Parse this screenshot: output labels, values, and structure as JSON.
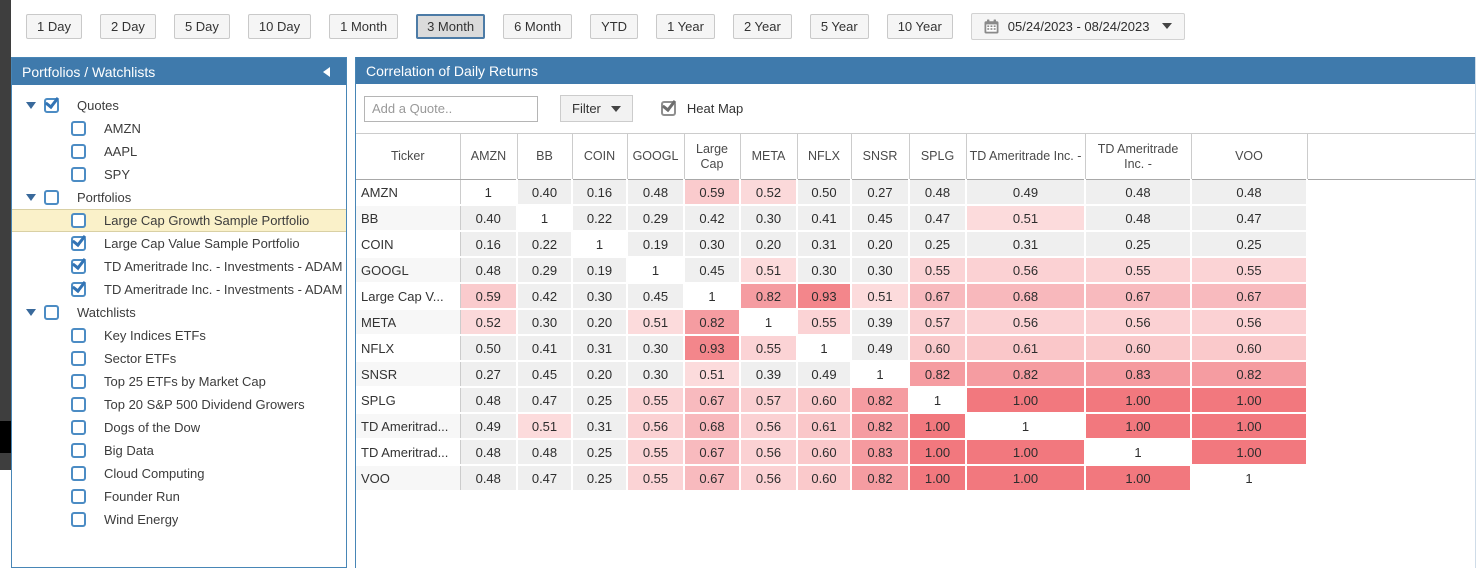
{
  "toolbar": {
    "periods": [
      "1 Day",
      "2 Day",
      "5 Day",
      "10 Day",
      "1 Month",
      "3 Month",
      "6 Month",
      "YTD",
      "1 Year",
      "2 Year",
      "5 Year",
      "10 Year"
    ],
    "selected_period": "3 Month",
    "date_range": "05/24/2023 - 08/24/2023"
  },
  "sidebar": {
    "title": "Portfolios / Watchlists",
    "tree": [
      {
        "level": "group",
        "label": "Quotes",
        "checked": true,
        "expanded": true
      },
      {
        "level": "item",
        "label": "AMZN",
        "checked": false
      },
      {
        "level": "item",
        "label": "AAPL",
        "checked": false
      },
      {
        "level": "item",
        "label": "SPY",
        "checked": false
      },
      {
        "level": "group",
        "label": "Portfolios",
        "checked": false,
        "expanded": true
      },
      {
        "level": "item",
        "label": "Large Cap Growth Sample Portfolio",
        "checked": false,
        "selected": true
      },
      {
        "level": "item",
        "label": "Large Cap Value Sample Portfolio",
        "checked": true
      },
      {
        "level": "item",
        "label": "TD Ameritrade Inc. - Investments - ADAM",
        "checked": true
      },
      {
        "level": "item",
        "label": "TD Ameritrade Inc. - Investments - ADAM",
        "checked": true
      },
      {
        "level": "group",
        "label": "Watchlists",
        "checked": false,
        "expanded": true
      },
      {
        "level": "item",
        "label": "Key Indices ETFs",
        "checked": false
      },
      {
        "level": "item",
        "label": "Sector ETFs",
        "checked": false
      },
      {
        "level": "item",
        "label": "Top 25 ETFs by Market Cap",
        "checked": false
      },
      {
        "level": "item",
        "label": "Top 20 S&P 500 Dividend Growers",
        "checked": false
      },
      {
        "level": "item",
        "label": "Dogs of the Dow",
        "checked": false
      },
      {
        "level": "item",
        "label": "Big Data",
        "checked": false
      },
      {
        "level": "item",
        "label": "Cloud Computing",
        "checked": false
      },
      {
        "level": "item",
        "label": "Founder Run",
        "checked": false
      },
      {
        "level": "item",
        "label": "Wind Energy",
        "checked": false
      }
    ]
  },
  "main": {
    "title": "Correlation of Daily Returns",
    "add_quote_placeholder": "Add a Quote..",
    "filter_label": "Filter",
    "heatmap_label": "Heat Map",
    "heatmap_checked": true
  },
  "correlation": {
    "type": "heatmap",
    "corner_header": "Ticker",
    "columns": [
      "AMZN",
      "BB",
      "COIN",
      "GOOGL",
      "Large Cap",
      "META",
      "NFLX",
      "SNSR",
      "SPLG",
      "TD Ameritrade Inc. -",
      "TD Ameritrade Inc. -",
      "VOO"
    ],
    "rows": [
      "AMZN",
      "BB",
      "COIN",
      "GOOGL",
      "Large Cap V...",
      "META",
      "NFLX",
      "SNSR",
      "SPLG",
      "TD Ameritrad...",
      "TD Ameritrad...",
      "VOO"
    ],
    "matrix": [
      [
        "1",
        "0.40",
        "0.16",
        "0.48",
        "0.59",
        "0.52",
        "0.50",
        "0.27",
        "0.48",
        "0.49",
        "0.48",
        "0.48"
      ],
      [
        "0.40",
        "1",
        "0.22",
        "0.29",
        "0.42",
        "0.30",
        "0.41",
        "0.45",
        "0.47",
        "0.51",
        "0.48",
        "0.47"
      ],
      [
        "0.16",
        "0.22",
        "1",
        "0.19",
        "0.30",
        "0.20",
        "0.31",
        "0.20",
        "0.25",
        "0.31",
        "0.25",
        "0.25"
      ],
      [
        "0.48",
        "0.29",
        "0.19",
        "1",
        "0.45",
        "0.51",
        "0.30",
        "0.30",
        "0.55",
        "0.56",
        "0.55",
        "0.55"
      ],
      [
        "0.59",
        "0.42",
        "0.30",
        "0.45",
        "1",
        "0.82",
        "0.93",
        "0.51",
        "0.67",
        "0.68",
        "0.67",
        "0.67"
      ],
      [
        "0.52",
        "0.30",
        "0.20",
        "0.51",
        "0.82",
        "1",
        "0.55",
        "0.39",
        "0.57",
        "0.56",
        "0.56",
        "0.56"
      ],
      [
        "0.50",
        "0.41",
        "0.31",
        "0.30",
        "0.93",
        "0.55",
        "1",
        "0.49",
        "0.60",
        "0.61",
        "0.60",
        "0.60"
      ],
      [
        "0.27",
        "0.45",
        "0.20",
        "0.30",
        "0.51",
        "0.39",
        "0.49",
        "1",
        "0.82",
        "0.82",
        "0.83",
        "0.82"
      ],
      [
        "0.48",
        "0.47",
        "0.25",
        "0.55",
        "0.67",
        "0.57",
        "0.60",
        "0.82",
        "1",
        "1.00",
        "1.00",
        "1.00"
      ],
      [
        "0.49",
        "0.51",
        "0.31",
        "0.56",
        "0.68",
        "0.56",
        "0.61",
        "0.82",
        "1.00",
        "1",
        "1.00",
        "1.00"
      ],
      [
        "0.48",
        "0.48",
        "0.25",
        "0.55",
        "0.67",
        "0.56",
        "0.60",
        "0.83",
        "1.00",
        "1.00",
        "1",
        "1.00"
      ],
      [
        "0.48",
        "0.47",
        "0.25",
        "0.55",
        "0.67",
        "0.56",
        "0.60",
        "0.82",
        "1.00",
        "1.00",
        "1.00",
        "1"
      ]
    ]
  },
  "colors": {
    "panel_header_blue": "#3f7aac",
    "selected_period_border": "#4c7ba6",
    "selected_row_yellow": "#faf1c9",
    "checkbox_blue": "#4c8cc4",
    "heat_base_red": "#f2787e",
    "heat_neutral_gray": "#efefef",
    "diagonal_white": "#ffffff"
  }
}
